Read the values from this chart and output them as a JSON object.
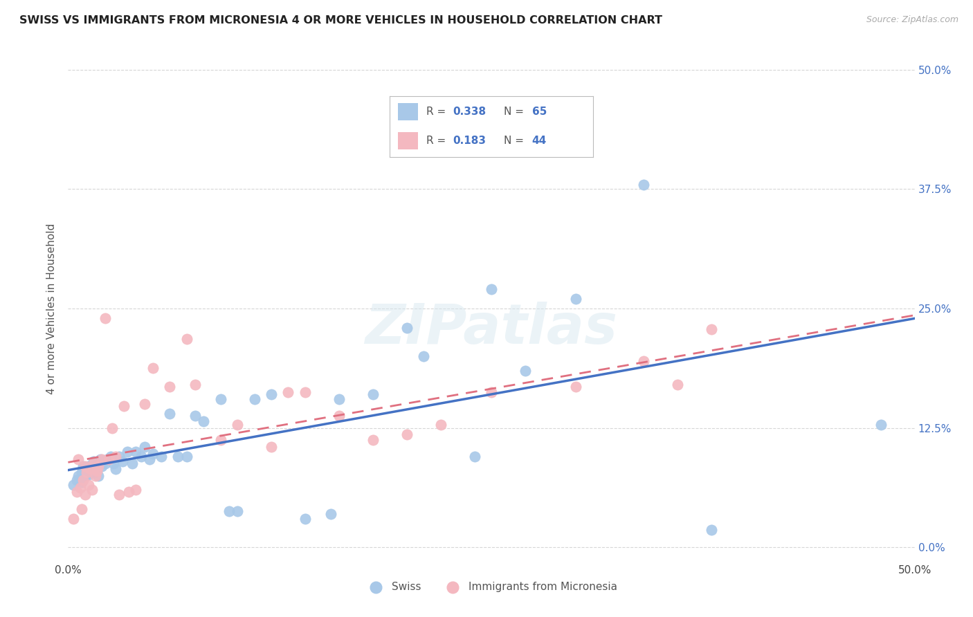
{
  "title": "SWISS VS IMMIGRANTS FROM MICRONESIA 4 OR MORE VEHICLES IN HOUSEHOLD CORRELATION CHART",
  "source": "Source: ZipAtlas.com",
  "ylabel": "4 or more Vehicles in Household",
  "xmin": 0.0,
  "xmax": 0.5,
  "ymin": -0.015,
  "ymax": 0.515,
  "legend_swiss_R": "0.338",
  "legend_swiss_N": "65",
  "legend_micro_R": "0.183",
  "legend_micro_N": "44",
  "swiss_color": "#a8c8e8",
  "micro_color": "#f4b8c0",
  "swiss_line_color": "#4472c4",
  "micro_line_color": "#e07080",
  "watermark": "ZIPatlas",
  "ytick_vals": [
    0.0,
    0.125,
    0.25,
    0.375,
    0.5
  ],
  "ytick_right_labels": [
    "0.0%",
    "12.5%",
    "25.0%",
    "37.5%",
    "50.0%"
  ],
  "swiss_scatter_x": [
    0.003,
    0.005,
    0.006,
    0.007,
    0.008,
    0.008,
    0.009,
    0.009,
    0.009,
    0.01,
    0.01,
    0.011,
    0.011,
    0.012,
    0.012,
    0.013,
    0.013,
    0.014,
    0.014,
    0.015,
    0.015,
    0.016,
    0.017,
    0.018,
    0.019,
    0.02,
    0.021,
    0.022,
    0.023,
    0.025,
    0.027,
    0.028,
    0.03,
    0.032,
    0.035,
    0.038,
    0.04,
    0.043,
    0.045,
    0.048,
    0.05,
    0.055,
    0.06,
    0.065,
    0.07,
    0.075,
    0.08,
    0.09,
    0.095,
    0.1,
    0.11,
    0.12,
    0.14,
    0.155,
    0.16,
    0.18,
    0.2,
    0.21,
    0.24,
    0.25,
    0.27,
    0.3,
    0.34,
    0.38,
    0.48
  ],
  "swiss_scatter_y": [
    0.065,
    0.07,
    0.075,
    0.072,
    0.068,
    0.078,
    0.071,
    0.08,
    0.085,
    0.075,
    0.082,
    0.078,
    0.083,
    0.076,
    0.085,
    0.08,
    0.082,
    0.079,
    0.086,
    0.078,
    0.09,
    0.083,
    0.088,
    0.075,
    0.092,
    0.085,
    0.09,
    0.088,
    0.092,
    0.095,
    0.088,
    0.082,
    0.095,
    0.09,
    0.1,
    0.088,
    0.1,
    0.095,
    0.105,
    0.092,
    0.098,
    0.095,
    0.14,
    0.095,
    0.095,
    0.138,
    0.132,
    0.155,
    0.038,
    0.038,
    0.155,
    0.16,
    0.03,
    0.035,
    0.155,
    0.16,
    0.23,
    0.2,
    0.095,
    0.27,
    0.185,
    0.26,
    0.38,
    0.018,
    0.128
  ],
  "micro_scatter_x": [
    0.003,
    0.005,
    0.006,
    0.007,
    0.008,
    0.009,
    0.01,
    0.01,
    0.011,
    0.012,
    0.013,
    0.014,
    0.015,
    0.016,
    0.017,
    0.018,
    0.02,
    0.022,
    0.024,
    0.026,
    0.028,
    0.03,
    0.033,
    0.036,
    0.04,
    0.045,
    0.05,
    0.06,
    0.07,
    0.075,
    0.09,
    0.1,
    0.12,
    0.13,
    0.14,
    0.16,
    0.18,
    0.2,
    0.22,
    0.25,
    0.3,
    0.34,
    0.36,
    0.38
  ],
  "micro_scatter_y": [
    0.03,
    0.058,
    0.092,
    0.062,
    0.04,
    0.07,
    0.055,
    0.085,
    0.078,
    0.065,
    0.082,
    0.06,
    0.088,
    0.075,
    0.08,
    0.085,
    0.092,
    0.24,
    0.092,
    0.125,
    0.095,
    0.055,
    0.148,
    0.058,
    0.06,
    0.15,
    0.188,
    0.168,
    0.218,
    0.17,
    0.112,
    0.128,
    0.105,
    0.162,
    0.162,
    0.138,
    0.112,
    0.118,
    0.128,
    0.162,
    0.168,
    0.195,
    0.17,
    0.228
  ]
}
